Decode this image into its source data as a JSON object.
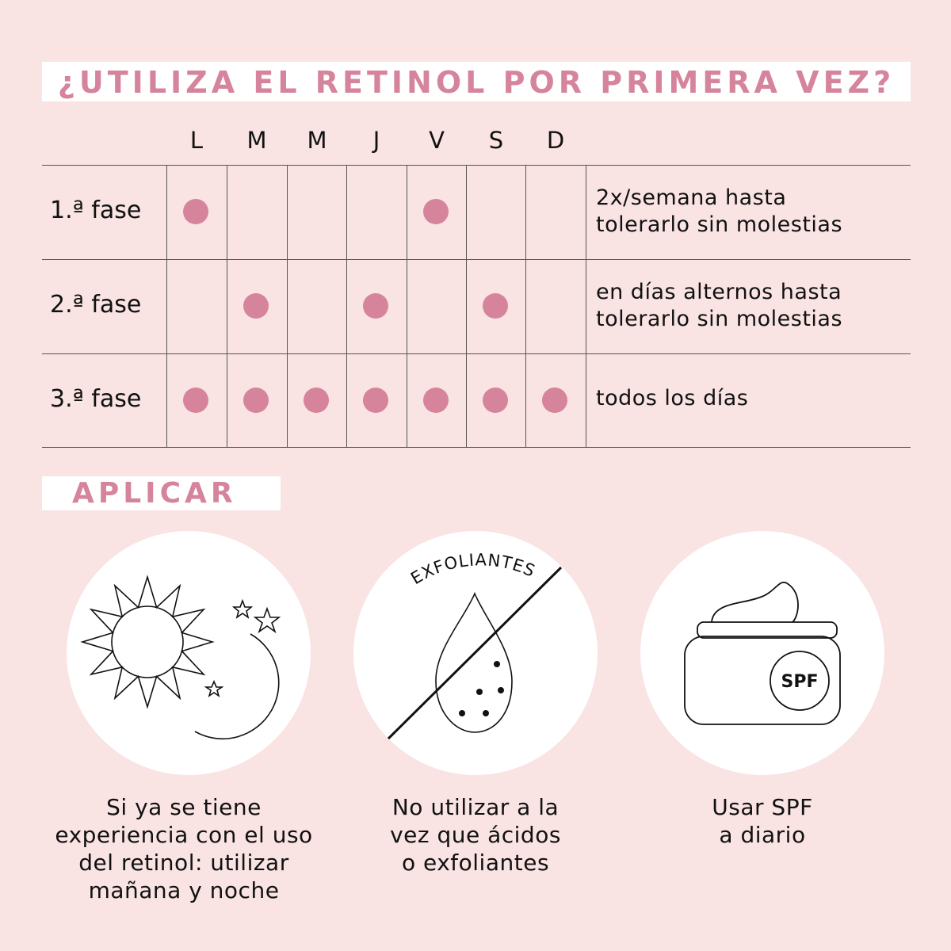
{
  "title": "¿UTILIZA EL RETINOL POR PRIMERA VEZ?",
  "days": [
    "L",
    "M",
    "M",
    "J",
    "V",
    "S",
    "D"
  ],
  "phases": [
    {
      "label": "1.ª fase",
      "active": [
        true,
        false,
        false,
        false,
        true,
        false,
        false
      ],
      "note_lines": [
        "2x/semana hasta",
        "tolerarlo sin molestias"
      ]
    },
    {
      "label": "2.ª fase",
      "active": [
        false,
        true,
        false,
        true,
        false,
        true,
        false
      ],
      "note_lines": [
        "en días alternos hasta",
        "tolerarlo sin molestias"
      ]
    },
    {
      "label": "3.ª fase",
      "active": [
        true,
        true,
        true,
        true,
        true,
        true,
        true
      ],
      "note_lines": [
        "todos los días",
        ""
      ]
    }
  ],
  "apply_title": "APLICAR",
  "tips": [
    {
      "icon": "sun-moon-icon",
      "lines": [
        "Si ya se tiene",
        "experiencia con el uso",
        "del retinol: utilizar",
        "mañana y noche"
      ]
    },
    {
      "icon": "no-exfoliant-icon",
      "badge": "EXFOLIANTES",
      "lines": [
        "No utilizar a la",
        "vez que ácidos",
        "o exfoliantes"
      ]
    },
    {
      "icon": "spf-jar-icon",
      "badge": "SPF",
      "lines": [
        "Usar SPF",
        "a diario"
      ]
    }
  ],
  "colors": {
    "accent": "#d6849c",
    "background": "#f9e3e3"
  }
}
